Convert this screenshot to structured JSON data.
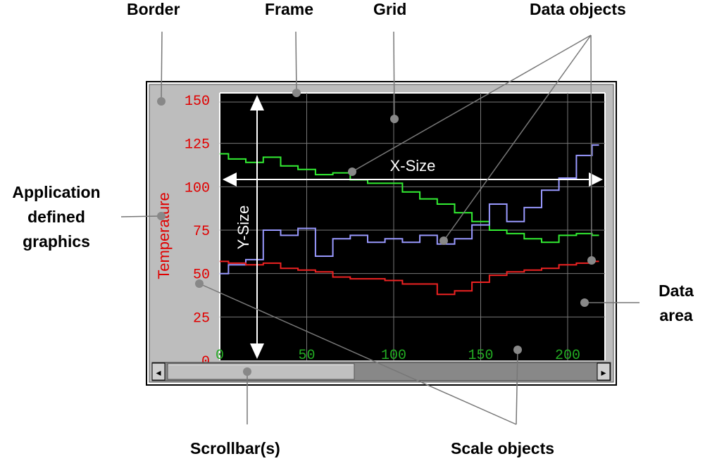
{
  "callouts": {
    "border": "Border",
    "frame": "Frame",
    "grid": "Grid",
    "data_objects": "Data objects",
    "app_graphics": [
      "Application",
      "defined",
      "graphics"
    ],
    "data_area": [
      "Data",
      "area"
    ],
    "scrollbars": "Scrollbar(s)",
    "scale_objects": "Scale objects"
  },
  "graph": {
    "y_title": "Temperature",
    "x_size_label": "X-Size",
    "y_size_label": "Y-Size",
    "scrollbar": {
      "left_arrow": "◂",
      "right_arrow": "▸"
    }
  },
  "chart_data": {
    "type": "line",
    "xlim": [
      0,
      220
    ],
    "ylim": [
      0,
      150
    ],
    "x_ticks": [
      "0",
      "50",
      "100",
      "150",
      "200"
    ],
    "y_ticks": [
      "0",
      "25",
      "50",
      "75",
      "100",
      "125",
      "150"
    ],
    "grid": true,
    "series": [
      {
        "color": "#33ee33",
        "x": [
          0,
          10,
          20,
          30,
          40,
          50,
          60,
          70,
          80,
          90,
          100,
          110,
          120,
          130,
          140,
          150,
          160,
          170,
          180,
          190,
          200,
          210,
          218
        ],
        "values": [
          119,
          116,
          114,
          117,
          112,
          110,
          107,
          108,
          104,
          102,
          102,
          97,
          93,
          90,
          85,
          80,
          75,
          73,
          70,
          68,
          72,
          73,
          72
        ]
      },
      {
        "color": "#9999ff",
        "x": [
          0,
          10,
          20,
          30,
          40,
          50,
          60,
          70,
          80,
          90,
          100,
          110,
          120,
          130,
          140,
          150,
          160,
          170,
          180,
          190,
          200,
          210,
          218
        ],
        "values": [
          50,
          55,
          58,
          75,
          72,
          76,
          60,
          70,
          72,
          68,
          70,
          68,
          72,
          67,
          70,
          78,
          90,
          80,
          88,
          98,
          105,
          118,
          124
        ]
      },
      {
        "color": "#ee2222",
        "x": [
          0,
          10,
          20,
          30,
          40,
          50,
          60,
          70,
          80,
          90,
          100,
          110,
          120,
          130,
          140,
          150,
          160,
          170,
          180,
          190,
          200,
          210,
          218
        ],
        "values": [
          57,
          56,
          55,
          56,
          53,
          52,
          51,
          48,
          47,
          47,
          46,
          44,
          44,
          38,
          40,
          45,
          49,
          51,
          52,
          53,
          55,
          56,
          57
        ]
      }
    ]
  }
}
